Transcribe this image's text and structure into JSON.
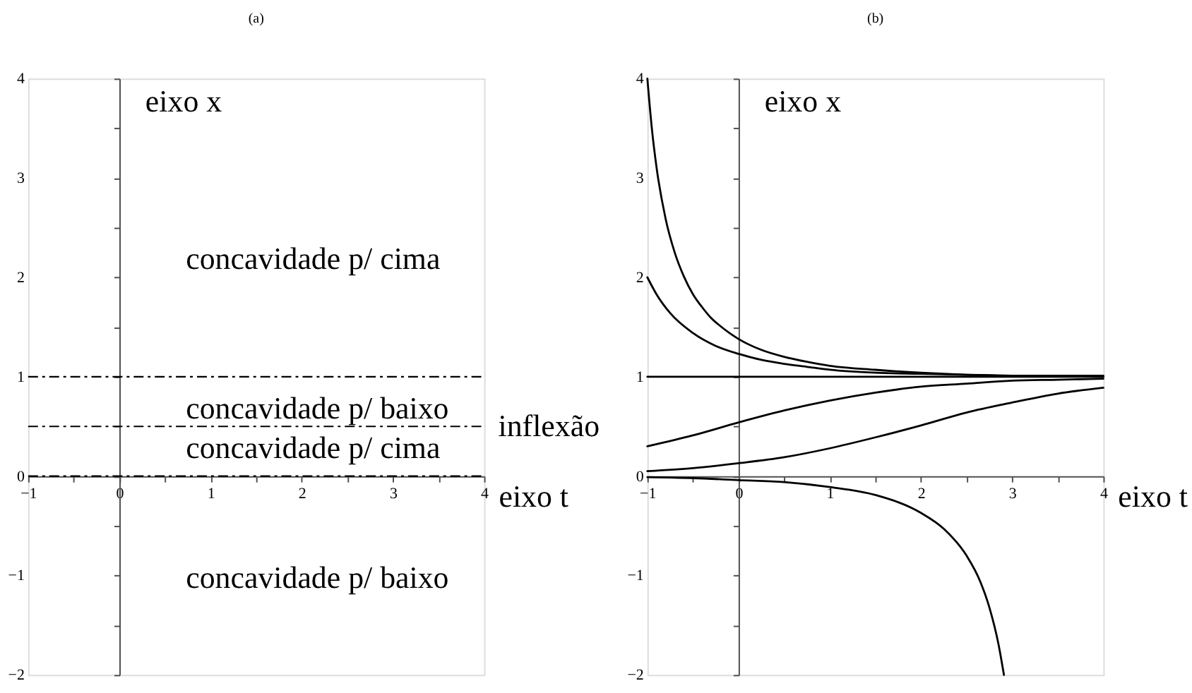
{
  "chart_data": [
    {
      "type": "line",
      "title": "(a)",
      "xlabel": "eixo t",
      "ylabel": "eixo x",
      "xlim": [
        -1,
        4
      ],
      "ylim": [
        -2,
        4
      ],
      "line_style": "dashed",
      "xticks": [
        -1,
        {
          "value": -0.5,
          "label": null
        },
        0,
        {
          "value": 0.5,
          "label": null
        },
        1,
        {
          "value": 1.5,
          "label": null
        },
        2,
        {
          "value": 2.5,
          "label": null
        },
        3,
        {
          "value": 3.5,
          "label": null
        },
        4
      ],
      "yticks": [
        -2,
        {
          "value": -1.5,
          "label": null
        },
        -1,
        {
          "value": -0.5,
          "label": null
        },
        0,
        {
          "value": 0.5,
          "label": null
        },
        1,
        {
          "value": 1.5,
          "label": null
        },
        2,
        {
          "value": 2.5,
          "label": null
        },
        3,
        {
          "value": 3.5,
          "label": null
        },
        4
      ],
      "series": [
        {
          "color": "#000000",
          "x": [
            -1,
            4
          ],
          "values": [
            1,
            1
          ]
        },
        {
          "name": "inflexão",
          "color": "#000000",
          "x": [
            -1,
            4
          ],
          "values": [
            0.5,
            0.5
          ]
        },
        {
          "color": "#000000",
          "x": [
            -1,
            4
          ],
          "values": [
            0,
            0
          ]
        }
      ],
      "annotations": [
        "concavidade p/ cima",
        "concavidade p/ baixo",
        "concavidade p/ cima",
        "concavidade p/ baixo"
      ]
    },
    {
      "type": "line",
      "title": "(b)",
      "xlabel": "eixo t",
      "ylabel": "eixo x",
      "xlim": [
        -1,
        4
      ],
      "ylim": [
        -2,
        4
      ],
      "xticks": [
        -1,
        {
          "value": -0.5,
          "label": null
        },
        0,
        {
          "value": 0.5,
          "label": null
        },
        1,
        {
          "value": 1.5,
          "label": null
        },
        2,
        {
          "value": 2.5,
          "label": null
        },
        3,
        {
          "value": 3.5,
          "label": null
        },
        4
      ],
      "yticks": [
        -2,
        {
          "value": -1.5,
          "label": null
        },
        -1,
        {
          "value": -0.5,
          "label": null
        },
        0,
        {
          "value": 0.5,
          "label": null
        },
        1,
        {
          "value": 1.5,
          "label": null
        },
        2,
        {
          "value": 2.5,
          "label": null
        },
        3,
        {
          "value": 3.5,
          "label": null
        },
        4
      ],
      "series": [
        {
          "color": "#000000",
          "x": [
            -1,
            -0.95,
            -0.9,
            -0.8,
            -0.7,
            -0.6,
            -0.5,
            -0.4,
            -0.3,
            -0.2,
            -0.1,
            0,
            0.25,
            0.5,
            0.75,
            1,
            1.5,
            2,
            2.5,
            3,
            4
          ],
          "values": [
            4.0,
            3.49,
            3.11,
            2.59,
            2.25,
            2.01,
            1.83,
            1.7,
            1.59,
            1.51,
            1.44,
            1.38,
            1.27,
            1.2,
            1.15,
            1.11,
            1.07,
            1.04,
            1.02,
            1.01,
            1.01
          ]
        },
        {
          "color": "#000000",
          "x": [
            -1,
            -0.9,
            -0.75,
            -0.5,
            -0.25,
            0,
            0.25,
            0.5,
            0.75,
            1,
            1.5,
            2,
            2.5,
            3,
            4
          ],
          "values": [
            2.0,
            1.83,
            1.64,
            1.44,
            1.31,
            1.23,
            1.17,
            1.13,
            1.1,
            1.07,
            1.04,
            1.03,
            1.02,
            1.01,
            1.0
          ]
        },
        {
          "color": "#000000",
          "x": [
            -1,
            4
          ],
          "values": [
            1,
            1
          ]
        },
        {
          "color": "#000000",
          "x": [
            -1,
            -0.5,
            0,
            0.5,
            1,
            1.5,
            2,
            2.5,
            3,
            3.5,
            4
          ],
          "values": [
            0.3,
            0.41,
            0.54,
            0.66,
            0.76,
            0.84,
            0.9,
            0.93,
            0.96,
            0.97,
            0.98
          ]
        },
        {
          "color": "#000000",
          "x": [
            -1,
            -0.5,
            0,
            0.5,
            1,
            1.5,
            2,
            2.5,
            3,
            3.5,
            4
          ],
          "values": [
            0.05,
            0.08,
            0.13,
            0.19,
            0.28,
            0.39,
            0.51,
            0.64,
            0.74,
            0.83,
            0.89
          ]
        },
        {
          "color": "#000000",
          "x": [
            -1,
            -0.5,
            0,
            0.5,
            1,
            1.5,
            2,
            2.25,
            2.5,
            2.65,
            2.75,
            2.85,
            2.91
          ],
          "values": [
            -0.01,
            -0.02,
            -0.04,
            -0.06,
            -0.11,
            -0.19,
            -0.37,
            -0.53,
            -0.8,
            -1.06,
            -1.32,
            -1.69,
            -2.0
          ]
        }
      ]
    }
  ]
}
